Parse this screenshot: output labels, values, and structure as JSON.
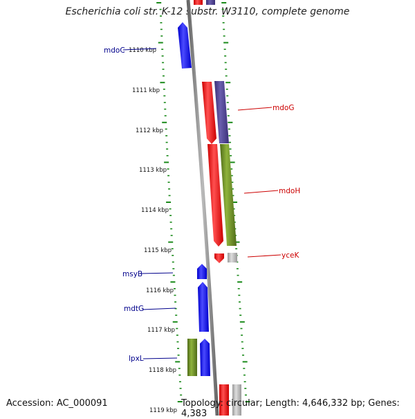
{
  "title": "Escherichia coli str. K-12 substr. W3110, complete genome",
  "accession": "Accession: AC_000091",
  "topology": "Topology: circular; Length: 4,646,332 bp; Genes: 4,383",
  "colors": {
    "forward": "#0000ff",
    "reverse": "#ff0000",
    "tick": "#1a8a1a",
    "backbone": "#888888",
    "cog_purple": "#4b3f8c",
    "cog_olive": "#6b8e23",
    "cog_gray": "#b0b0b0",
    "label_fwd": "#00008b",
    "label_rev": "#cc0000"
  },
  "scale_labels": [
    "1110 kbp",
    "1111 kbp",
    "1112 kbp",
    "1113 kbp",
    "1114 kbp",
    "1115 kbp",
    "1116 kbp",
    "1117 kbp",
    "1118 kbp",
    "1119 kbp"
  ],
  "genes": [
    {
      "name": "mdoC",
      "strand": "forward"
    },
    {
      "name": "mdoG",
      "strand": "reverse"
    },
    {
      "name": "mdoH",
      "strand": "reverse"
    },
    {
      "name": "yceK",
      "strand": "reverse"
    },
    {
      "name": "msyB",
      "strand": "forward"
    },
    {
      "name": "mdtG",
      "strand": "forward"
    },
    {
      "name": "lpxL",
      "strand": "forward"
    }
  ]
}
